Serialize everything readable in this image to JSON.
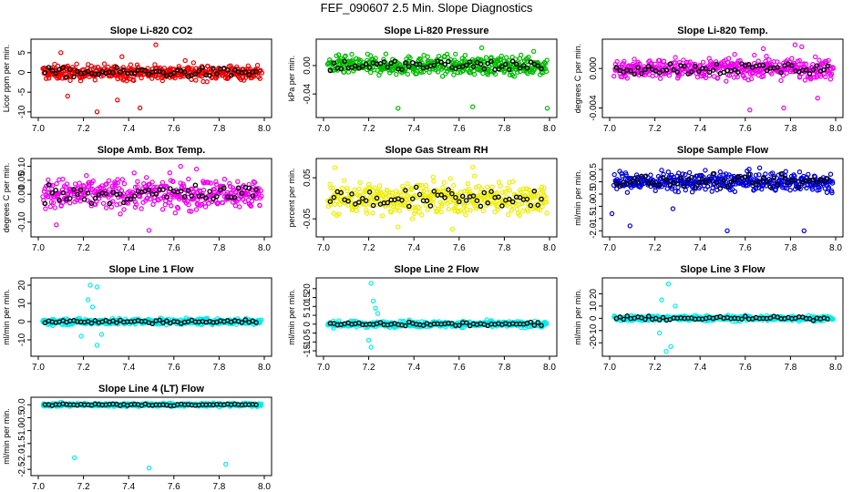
{
  "page": {
    "title": "FEF_090607  2.5 Min. Slope Diagnostics"
  },
  "chart_data": [
    {
      "type": "scatter",
      "title": "Slope Li-820 CO2",
      "ylabel": "Licor ppm per min.",
      "xlim": [
        7.0,
        8.0
      ],
      "ylim": [
        -10.5,
        7.5
      ],
      "xticks": [
        "7.0",
        "7.2",
        "7.4",
        "7.6",
        "7.8",
        "8.0"
      ],
      "yticks": [
        -10,
        -5,
        0,
        5
      ],
      "color": "#ee0000",
      "spread": 1.7,
      "outliers": [
        [
          7.1,
          5.0
        ],
        [
          7.26,
          -10.0
        ],
        [
          7.52,
          7.0
        ],
        [
          7.35,
          -7.0
        ],
        [
          7.45,
          -9.0
        ],
        [
          7.13,
          -6.0
        ],
        [
          7.65,
          3.0
        ],
        [
          7.37,
          4.0
        ]
      ]
    },
    {
      "type": "scatter",
      "title": "Slope Li-820 Pressure",
      "ylabel": "kPa per min.",
      "xlim": [
        7.0,
        8.0
      ],
      "ylim": [
        -0.068,
        0.032
      ],
      "xticks": [
        "7.0",
        "7.2",
        "7.4",
        "7.6",
        "7.8",
        "8.0"
      ],
      "yticks": [
        -0.04,
        0.0
      ],
      "yticklabels": [
        "-0.04",
        "0.00"
      ],
      "color": "#00bb00",
      "spread": 0.012,
      "outliers": [
        [
          7.33,
          -0.06
        ],
        [
          7.66,
          -0.058
        ],
        [
          7.99,
          -0.06
        ],
        [
          7.7,
          0.025
        ],
        [
          7.93,
          0.02
        ]
      ]
    },
    {
      "type": "scatter",
      "title": "Slope Li-820 Temp.",
      "ylabel": "degrees C per min.",
      "xlim": [
        7.0,
        8.0
      ],
      "ylim": [
        -0.0046,
        0.0026
      ],
      "xticks": [
        "7.0",
        "7.2",
        "7.4",
        "7.6",
        "7.8",
        "8.0"
      ],
      "yticks": [
        -0.004,
        0.0
      ],
      "yticklabels": [
        "-0.004",
        "0.000"
      ],
      "color": "#ee00ee",
      "spread": 0.0009,
      "outliers": [
        [
          7.82,
          0.0024
        ],
        [
          7.85,
          0.0022
        ],
        [
          7.77,
          -0.004
        ],
        [
          7.62,
          -0.0042
        ],
        [
          7.92,
          -0.003
        ],
        [
          7.68,
          0.002
        ]
      ]
    },
    {
      "type": "scatter",
      "title": "Slope Amb. Box Temp.",
      "ylabel": "degrees C per min.",
      "xlim": [
        7.0,
        8.0
      ],
      "ylim": [
        -0.14,
        0.115
      ],
      "xticks": [
        "7.0",
        "7.2",
        "7.4",
        "7.6",
        "7.8",
        "8.0"
      ],
      "yticks": [
        -0.1,
        0.0,
        0.05,
        0.1
      ],
      "yticklabels": [
        "-0.10",
        "0.00",
        "0.05",
        "0.10"
      ],
      "color": "#ee00ee",
      "spread": 0.05,
      "outliers": [
        [
          7.63,
          0.1
        ],
        [
          7.49,
          -0.13
        ],
        [
          7.08,
          -0.11
        ],
        [
          7.7,
          0.09
        ]
      ]
    },
    {
      "type": "scatter",
      "title": "Slope Gas Stream RH",
      "ylabel": "percent per min.",
      "xlim": [
        7.0,
        8.0
      ],
      "ylim": [
        -0.085,
        0.088
      ],
      "xticks": [
        "7.0",
        "7.2",
        "7.4",
        "7.6",
        "7.8",
        "8.0"
      ],
      "yticks": [
        -0.05,
        0.05
      ],
      "yticklabels": [
        "-0.05",
        "0.05"
      ],
      "color": "#eeee00",
      "spread": 0.035,
      "outliers": [
        [
          7.05,
          0.075
        ],
        [
          7.66,
          0.076
        ],
        [
          7.33,
          -0.07
        ],
        [
          7.57,
          -0.075
        ]
      ]
    },
    {
      "type": "scatter",
      "title": "Slope Sample Flow",
      "ylabel": "ml/min per min.",
      "xlim": [
        7.0,
        8.0
      ],
      "ylim": [
        -2.1,
        0.8
      ],
      "xticks": [
        "7.0",
        "7.2",
        "7.4",
        "7.6",
        "7.8",
        "8.0"
      ],
      "yticks": [
        -2,
        -1.5,
        -1,
        -0.5,
        0,
        0.5
      ],
      "yticklabels": [
        "-2.0",
        "-1.5",
        "-1.0",
        "-0.5",
        "0.0",
        "0.5"
      ],
      "color": "#0000dd",
      "spread": 0.35,
      "outliers": [
        [
          7.01,
          -1.3
        ],
        [
          7.09,
          -1.8
        ],
        [
          7.52,
          -2.0
        ],
        [
          7.86,
          -2.0
        ],
        [
          7.28,
          -1.1
        ]
      ]
    },
    {
      "type": "scatter",
      "title": "Slope Line 1 Flow",
      "ylabel": "ml/min per min.",
      "xlim": [
        7.0,
        8.0
      ],
      "ylim": [
        -17,
        22
      ],
      "xticks": [
        "7.0",
        "7.2",
        "7.4",
        "7.6",
        "7.8",
        "8.0"
      ],
      "yticks": [
        -10,
        0,
        10,
        20
      ],
      "color": "#00eeee",
      "spread": 1.5,
      "outliers": [
        [
          7.23,
          20
        ],
        [
          7.26,
          19
        ],
        [
          7.26,
          -13
        ],
        [
          7.19,
          -8
        ],
        [
          7.22,
          12
        ],
        [
          7.24,
          8
        ],
        [
          7.28,
          -7
        ]
      ]
    },
    {
      "type": "scatter",
      "title": "Slope Line 2 Flow",
      "ylabel": "ml/min per min.",
      "xlim": [
        7.0,
        8.0
      ],
      "ylim": [
        -16,
        24
      ],
      "xticks": [
        "7.0",
        "7.2",
        "7.4",
        "7.6",
        "7.8",
        "8.0"
      ],
      "yticks": [
        -15,
        -10,
        -5,
        0,
        5,
        10,
        15,
        20
      ],
      "color": "#00eeee",
      "spread": 1.5,
      "outliers": [
        [
          7.21,
          23
        ],
        [
          7.21,
          -13
        ],
        [
          7.2,
          -9
        ],
        [
          7.23,
          9
        ],
        [
          7.22,
          13
        ],
        [
          7.24,
          6
        ]
      ]
    },
    {
      "type": "scatter",
      "title": "Slope Line 3 Flow",
      "ylabel": "ml/min per min.",
      "xlim": [
        7.0,
        8.0
      ],
      "ylim": [
        -28,
        30
      ],
      "xticks": [
        "7.0",
        "7.2",
        "7.4",
        "7.6",
        "7.8",
        "8.0"
      ],
      "yticks": [
        -20,
        -10,
        0,
        10,
        20
      ],
      "color": "#00eeee",
      "spread": 2.0,
      "outliers": [
        [
          7.26,
          28
        ],
        [
          7.27,
          -23
        ],
        [
          7.25,
          -27
        ],
        [
          7.23,
          15
        ],
        [
          7.29,
          10
        ],
        [
          7.22,
          -12
        ]
      ]
    },
    {
      "type": "scatter",
      "title": "Slope Line 4 (LT) Flow",
      "ylabel": "ml/min per min.",
      "xlim": [
        7.0,
        8.0
      ],
      "ylim": [
        -2.6,
        0.15
      ],
      "xticks": [
        "7.0",
        "7.2",
        "7.4",
        "7.6",
        "7.8",
        "8.0"
      ],
      "yticks": [
        -2.5,
        -2,
        -1.5,
        -1,
        -0.5,
        0
      ],
      "yticklabels": [
        "-2.5",
        "-2.0",
        "-1.5",
        "-1.0",
        "-0.5",
        "0.0"
      ],
      "color": "#00eeee",
      "spread": 0.06,
      "outliers": [
        [
          7.16,
          -2.05
        ],
        [
          7.49,
          -2.45
        ],
        [
          7.83,
          -2.3
        ]
      ]
    }
  ]
}
